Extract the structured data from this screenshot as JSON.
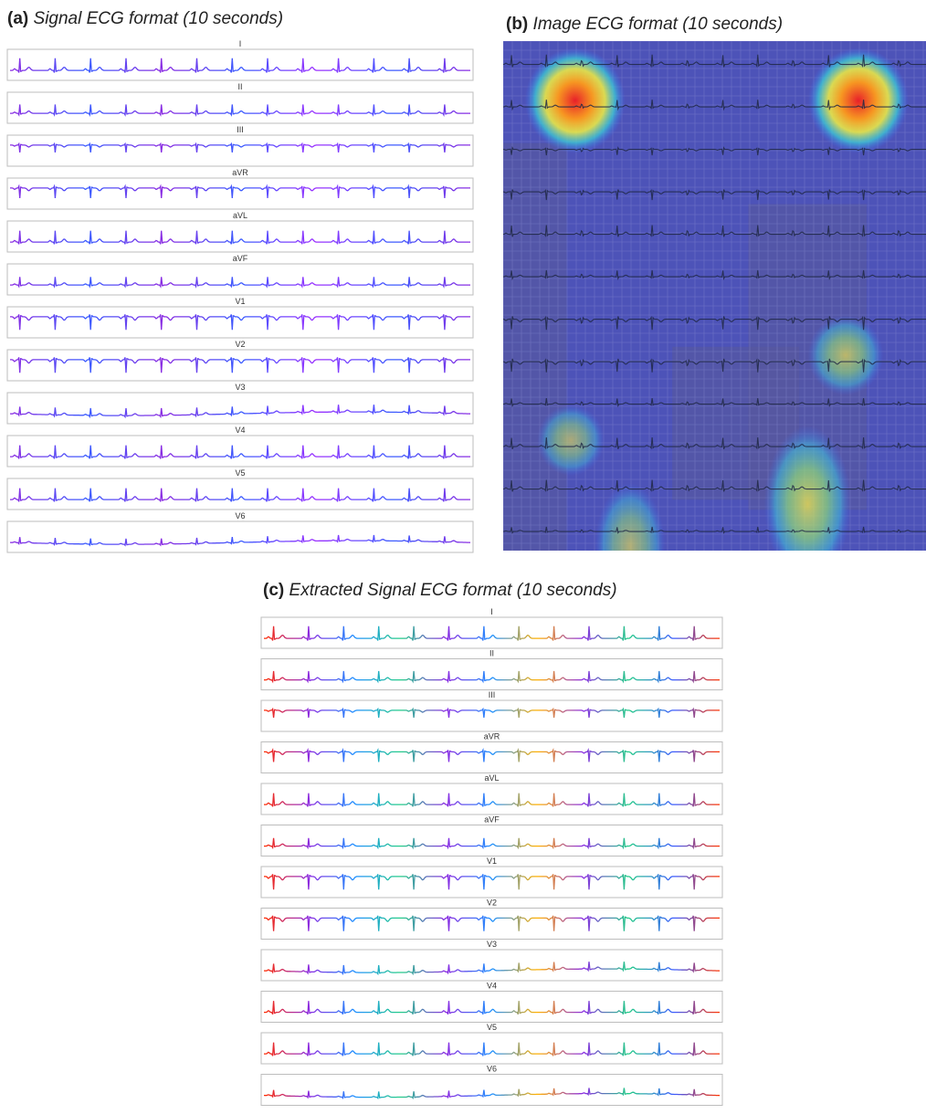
{
  "panels": {
    "a": {
      "letter": "(a)",
      "title": "Signal ECG format",
      "duration": "(10 seconds)"
    },
    "b": {
      "letter": "(b)",
      "title": "Image ECG format",
      "duration": "(10 seconds)"
    },
    "c": {
      "letter": "(c)",
      "title": "Extracted Signal ECG format (10 seconds)"
    }
  },
  "leads": [
    "I",
    "II",
    "III",
    "aVR",
    "aVL",
    "aVF",
    "V1",
    "V2",
    "V3",
    "V4",
    "V5",
    "V6"
  ],
  "heatmap_hotspots": [
    {
      "row": 1,
      "col": 0.17,
      "intensity": 1.0
    },
    {
      "row": 1,
      "col": 0.84,
      "intensity": 1.0
    },
    {
      "row": 7,
      "col": 0.81,
      "intensity": 0.55
    },
    {
      "row": 9,
      "col": 0.16,
      "intensity": 0.4
    },
    {
      "row": 10.5,
      "col": 0.72,
      "intensity": 0.75
    },
    {
      "row": 11.5,
      "col": 0.3,
      "intensity": 0.45
    }
  ]
}
